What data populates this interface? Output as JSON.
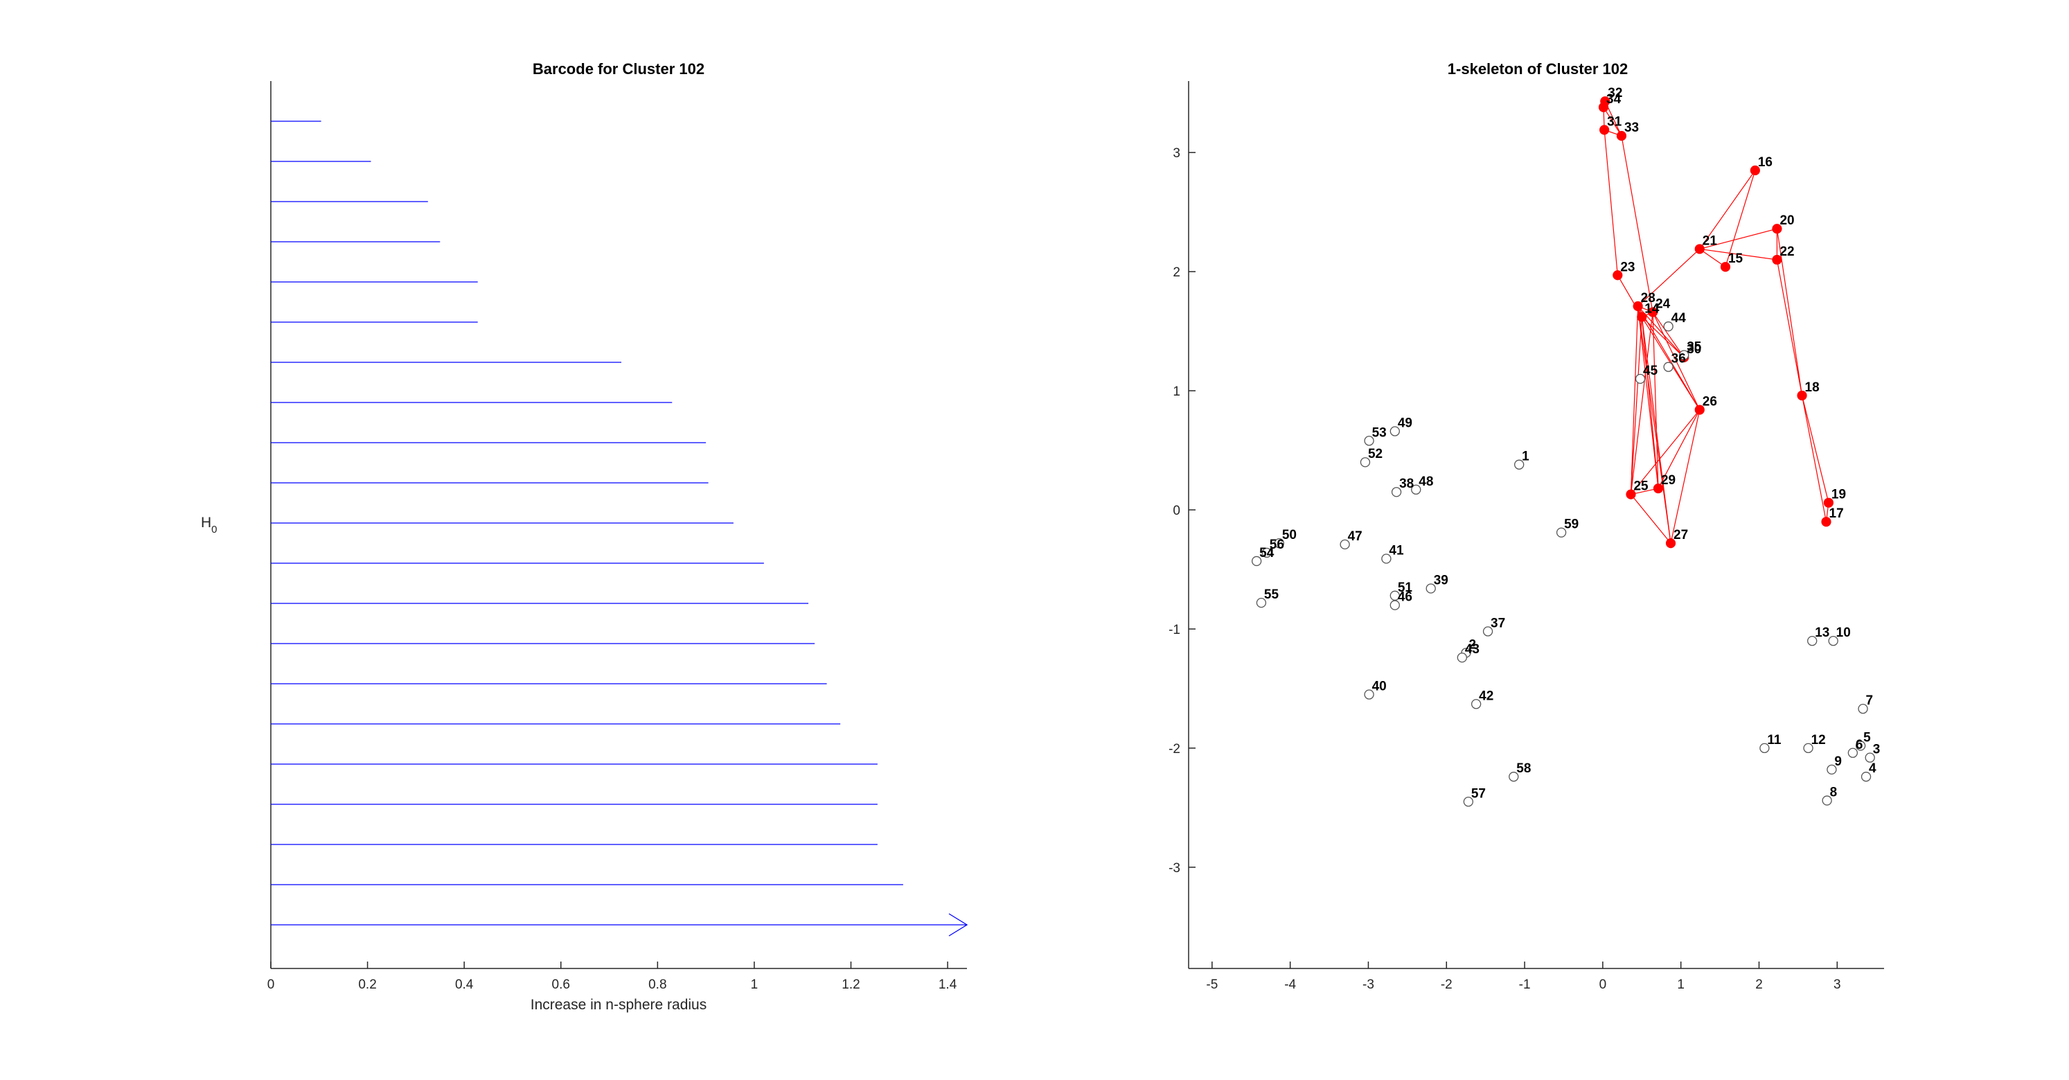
{
  "chart_data": [
    {
      "type": "barcode",
      "title": "Barcode for Cluster 102",
      "xlabel": "Increase in n-sphere radius",
      "ylabel_main": "H",
      "ylabel_sub": "0",
      "xlim": [
        0,
        1.44
      ],
      "xticks": [
        0,
        0.2,
        0.4,
        0.6,
        0.8,
        1,
        1.2,
        1.4
      ],
      "xtick_labels": [
        "0",
        "0.2",
        "0.4",
        "0.6",
        "0.8",
        "1",
        "1.2",
        "1.4"
      ],
      "color": "#0000ff",
      "bars": [
        0.104,
        0.207,
        0.325,
        0.35,
        0.428,
        0.428,
        0.725,
        0.83,
        0.9,
        0.905,
        0.957,
        1.02,
        1.112,
        1.125,
        1.15,
        1.178,
        1.255,
        1.255,
        1.255,
        1.308
      ],
      "infinite_bars": 1
    },
    {
      "type": "graph",
      "title": "1-skeleton of Cluster 102",
      "xlim": [
        -5.3,
        3.6
      ],
      "ylim": [
        -3.85,
        3.6
      ],
      "xticks": [
        -5,
        -4,
        -3,
        -2,
        -1,
        0,
        1,
        2,
        3
      ],
      "yticks": [
        -3,
        -2,
        -1,
        0,
        1,
        2,
        3
      ],
      "xtick_labels": [
        "-5",
        "-4",
        "-3",
        "-2",
        "-1",
        "0",
        "1",
        "2",
        "3"
      ],
      "ytick_labels": [
        "-3",
        "-2",
        "-1",
        "0",
        "1",
        "2",
        "3"
      ],
      "active_color": "#ff0000",
      "inactive_color": "#555555",
      "nodes": [
        {
          "id": "1",
          "x": -1.07,
          "y": 0.38,
          "active": false
        },
        {
          "id": "2",
          "x": -1.75,
          "y": -1.2,
          "active": false
        },
        {
          "id": "3",
          "x": 3.42,
          "y": -2.08,
          "active": false
        },
        {
          "id": "4",
          "x": 3.37,
          "y": -2.24,
          "active": false
        },
        {
          "id": "5",
          "x": 3.3,
          "y": -1.98,
          "active": false
        },
        {
          "id": "6",
          "x": 3.2,
          "y": -2.04,
          "active": false
        },
        {
          "id": "7",
          "x": 3.33,
          "y": -1.67,
          "active": false
        },
        {
          "id": "8",
          "x": 2.87,
          "y": -2.44,
          "active": false
        },
        {
          "id": "9",
          "x": 2.93,
          "y": -2.18,
          "active": false
        },
        {
          "id": "10",
          "x": 2.95,
          "y": -1.1,
          "active": false
        },
        {
          "id": "11",
          "x": 2.07,
          "y": -2.0,
          "active": false
        },
        {
          "id": "12",
          "x": 2.63,
          "y": -2.0,
          "active": false
        },
        {
          "id": "13",
          "x": 2.68,
          "y": -1.1,
          "active": false
        },
        {
          "id": "14",
          "x": 0.5,
          "y": 1.62,
          "active": true
        },
        {
          "id": "15",
          "x": 1.57,
          "y": 2.04,
          "active": true
        },
        {
          "id": "16",
          "x": 1.95,
          "y": 2.85,
          "active": true
        },
        {
          "id": "17",
          "x": 2.86,
          "y": -0.1,
          "active": true
        },
        {
          "id": "18",
          "x": 2.55,
          "y": 0.96,
          "active": true
        },
        {
          "id": "19",
          "x": 2.89,
          "y": 0.06,
          "active": true
        },
        {
          "id": "20",
          "x": 2.23,
          "y": 2.36,
          "active": true
        },
        {
          "id": "21",
          "x": 1.24,
          "y": 2.19,
          "active": true
        },
        {
          "id": "22",
          "x": 2.23,
          "y": 2.1,
          "active": true
        },
        {
          "id": "23",
          "x": 0.19,
          "y": 1.97,
          "active": true
        },
        {
          "id": "24",
          "x": 0.64,
          "y": 1.66,
          "active": true
        },
        {
          "id": "25",
          "x": 0.36,
          "y": 0.13,
          "active": true
        },
        {
          "id": "26",
          "x": 1.24,
          "y": 0.84,
          "active": true
        },
        {
          "id": "27",
          "x": 0.87,
          "y": -0.28,
          "active": true
        },
        {
          "id": "28",
          "x": 0.45,
          "y": 1.71,
          "active": true
        },
        {
          "id": "29",
          "x": 0.71,
          "y": 0.18,
          "active": true
        },
        {
          "id": "30",
          "x": 1.04,
          "y": 1.28,
          "active": true
        },
        {
          "id": "31",
          "x": 0.02,
          "y": 3.19,
          "active": true
        },
        {
          "id": "32",
          "x": 0.03,
          "y": 3.43,
          "active": true
        },
        {
          "id": "33",
          "x": 0.24,
          "y": 3.14,
          "active": true
        },
        {
          "id": "34",
          "x": 0.01,
          "y": 3.38,
          "active": true
        },
        {
          "id": "35",
          "x": 1.04,
          "y": 1.3,
          "active": false
        },
        {
          "id": "36",
          "x": 0.84,
          "y": 1.2,
          "active": false
        },
        {
          "id": "37",
          "x": -1.47,
          "y": -1.02,
          "active": false
        },
        {
          "id": "38",
          "x": -2.64,
          "y": 0.15,
          "active": false
        },
        {
          "id": "39",
          "x": -2.2,
          "y": -0.66,
          "active": false
        },
        {
          "id": "40",
          "x": -2.99,
          "y": -1.55,
          "active": false
        },
        {
          "id": "41",
          "x": -2.77,
          "y": -0.41,
          "active": false
        },
        {
          "id": "42",
          "x": -1.62,
          "y": -1.63,
          "active": false
        },
        {
          "id": "43",
          "x": -1.8,
          "y": -1.24,
          "active": false
        },
        {
          "id": "44",
          "x": 0.84,
          "y": 1.54,
          "active": false
        },
        {
          "id": "45",
          "x": 0.48,
          "y": 1.1,
          "active": false
        },
        {
          "id": "46",
          "x": -2.66,
          "y": -0.8,
          "active": false
        },
        {
          "id": "47",
          "x": -3.3,
          "y": -0.29,
          "active": false
        },
        {
          "id": "48",
          "x": -2.39,
          "y": 0.17,
          "active": false
        },
        {
          "id": "49",
          "x": -2.66,
          "y": 0.66,
          "active": false
        },
        {
          "id": "50",
          "x": -4.14,
          "y": -0.28,
          "active": false
        },
        {
          "id": "51",
          "x": -2.66,
          "y": -0.72,
          "active": false
        },
        {
          "id": "52",
          "x": -3.04,
          "y": 0.4,
          "active": false
        },
        {
          "id": "53",
          "x": -2.99,
          "y": 0.58,
          "active": false
        },
        {
          "id": "54",
          "x": -4.43,
          "y": -0.43,
          "active": false
        },
        {
          "id": "55",
          "x": -4.37,
          "y": -0.78,
          "active": false
        },
        {
          "id": "56",
          "x": -4.3,
          "y": -0.36,
          "active": false
        },
        {
          "id": "57",
          "x": -1.72,
          "y": -2.45,
          "active": false
        },
        {
          "id": "58",
          "x": -1.14,
          "y": -2.24,
          "active": false
        },
        {
          "id": "59",
          "x": -0.53,
          "y": -0.19,
          "active": false
        }
      ],
      "edges": [
        [
          "32",
          "34"
        ],
        [
          "34",
          "31"
        ],
        [
          "31",
          "33"
        ],
        [
          "32",
          "33"
        ],
        [
          "33",
          "24"
        ],
        [
          "34",
          "33"
        ],
        [
          "31",
          "23"
        ],
        [
          "23",
          "14"
        ],
        [
          "28",
          "14"
        ],
        [
          "28",
          "24"
        ],
        [
          "14",
          "24"
        ],
        [
          "28",
          "21"
        ],
        [
          "21",
          "16"
        ],
        [
          "16",
          "15"
        ],
        [
          "21",
          "15"
        ],
        [
          "21",
          "20"
        ],
        [
          "21",
          "22"
        ],
        [
          "20",
          "22"
        ],
        [
          "20",
          "18"
        ],
        [
          "22",
          "18"
        ],
        [
          "18",
          "19"
        ],
        [
          "18",
          "17"
        ],
        [
          "17",
          "19"
        ],
        [
          "14",
          "30"
        ],
        [
          "24",
          "30"
        ],
        [
          "28",
          "30"
        ],
        [
          "14",
          "26"
        ],
        [
          "24",
          "26"
        ],
        [
          "28",
          "26"
        ],
        [
          "14",
          "25"
        ],
        [
          "28",
          "25"
        ],
        [
          "24",
          "25"
        ],
        [
          "14",
          "29"
        ],
        [
          "24",
          "29"
        ],
        [
          "28",
          "29"
        ],
        [
          "14",
          "27"
        ],
        [
          "28",
          "27"
        ],
        [
          "25",
          "26"
        ],
        [
          "26",
          "29"
        ],
        [
          "26",
          "27"
        ],
        [
          "25",
          "29"
        ],
        [
          "25",
          "27"
        ]
      ]
    }
  ]
}
